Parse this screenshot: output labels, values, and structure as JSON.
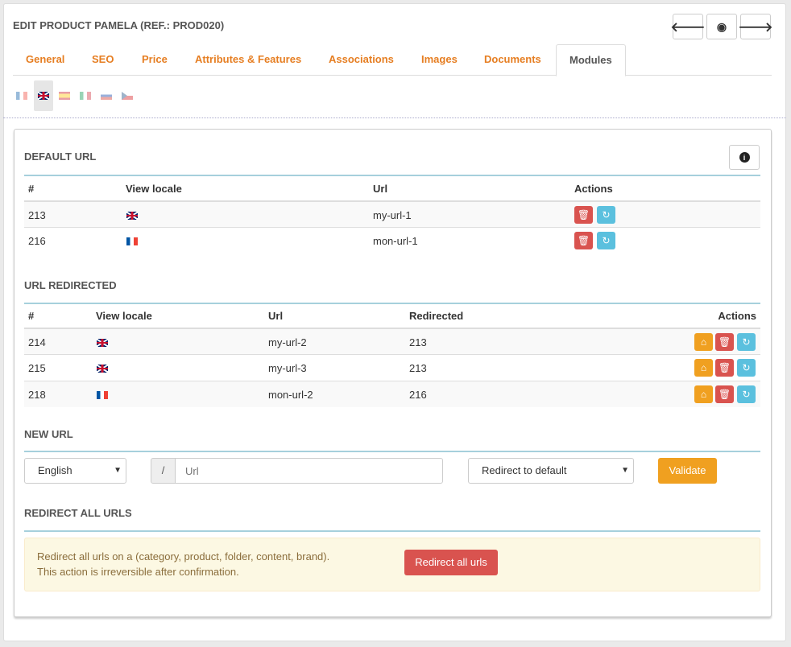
{
  "header": {
    "title": "EDIT PRODUCT PAMELA (REF.: PROD020)",
    "buttons": [
      "previous-arrow",
      "preview-eye",
      "next-arrow"
    ]
  },
  "tabs": [
    {
      "label": "General"
    },
    {
      "label": "SEO"
    },
    {
      "label": "Price"
    },
    {
      "label": "Attributes & Features"
    },
    {
      "label": "Associations"
    },
    {
      "label": "Images"
    },
    {
      "label": "Documents"
    },
    {
      "label": "Modules",
      "active": true
    }
  ],
  "languages": [
    "fr",
    "en",
    "es",
    "it",
    "ru",
    "cz"
  ],
  "selected_language": "en",
  "default_url": {
    "heading": "DEFAULT URL",
    "columns": [
      "#",
      "View locale",
      "Url",
      "Actions"
    ],
    "rows": [
      {
        "id": "213",
        "locale": "en",
        "url": "my-url-1"
      },
      {
        "id": "216",
        "locale": "fr",
        "url": "mon-url-1"
      }
    ]
  },
  "url_redirected": {
    "heading": "URL REDIRECTED",
    "columns": [
      "#",
      "View locale",
      "Url",
      "Redirected",
      "Actions"
    ],
    "rows": [
      {
        "id": "214",
        "locale": "en",
        "url": "my-url-2",
        "redirected": "213"
      },
      {
        "id": "215",
        "locale": "en",
        "url": "my-url-3",
        "redirected": "213"
      },
      {
        "id": "218",
        "locale": "fr",
        "url": "mon-url-2",
        "redirected": "216"
      }
    ]
  },
  "new_url": {
    "heading": "NEW URL",
    "language": "English",
    "prefix": "/",
    "url_placeholder": "Url",
    "redirect": "Redirect to default",
    "validate": "Validate"
  },
  "redirect_all": {
    "heading": "REDIRECT ALL URLS",
    "line1": "Redirect all urls on a (category, product, folder, content, brand).",
    "line2": "This action is irreversible after confirmation.",
    "button": "Redirect all urls"
  },
  "colors": {
    "accent": "#e67e22",
    "danger": "#d9534f",
    "info": "#5bc0de",
    "warning": "#f0a020",
    "alert_bg": "#fcf8e3"
  }
}
